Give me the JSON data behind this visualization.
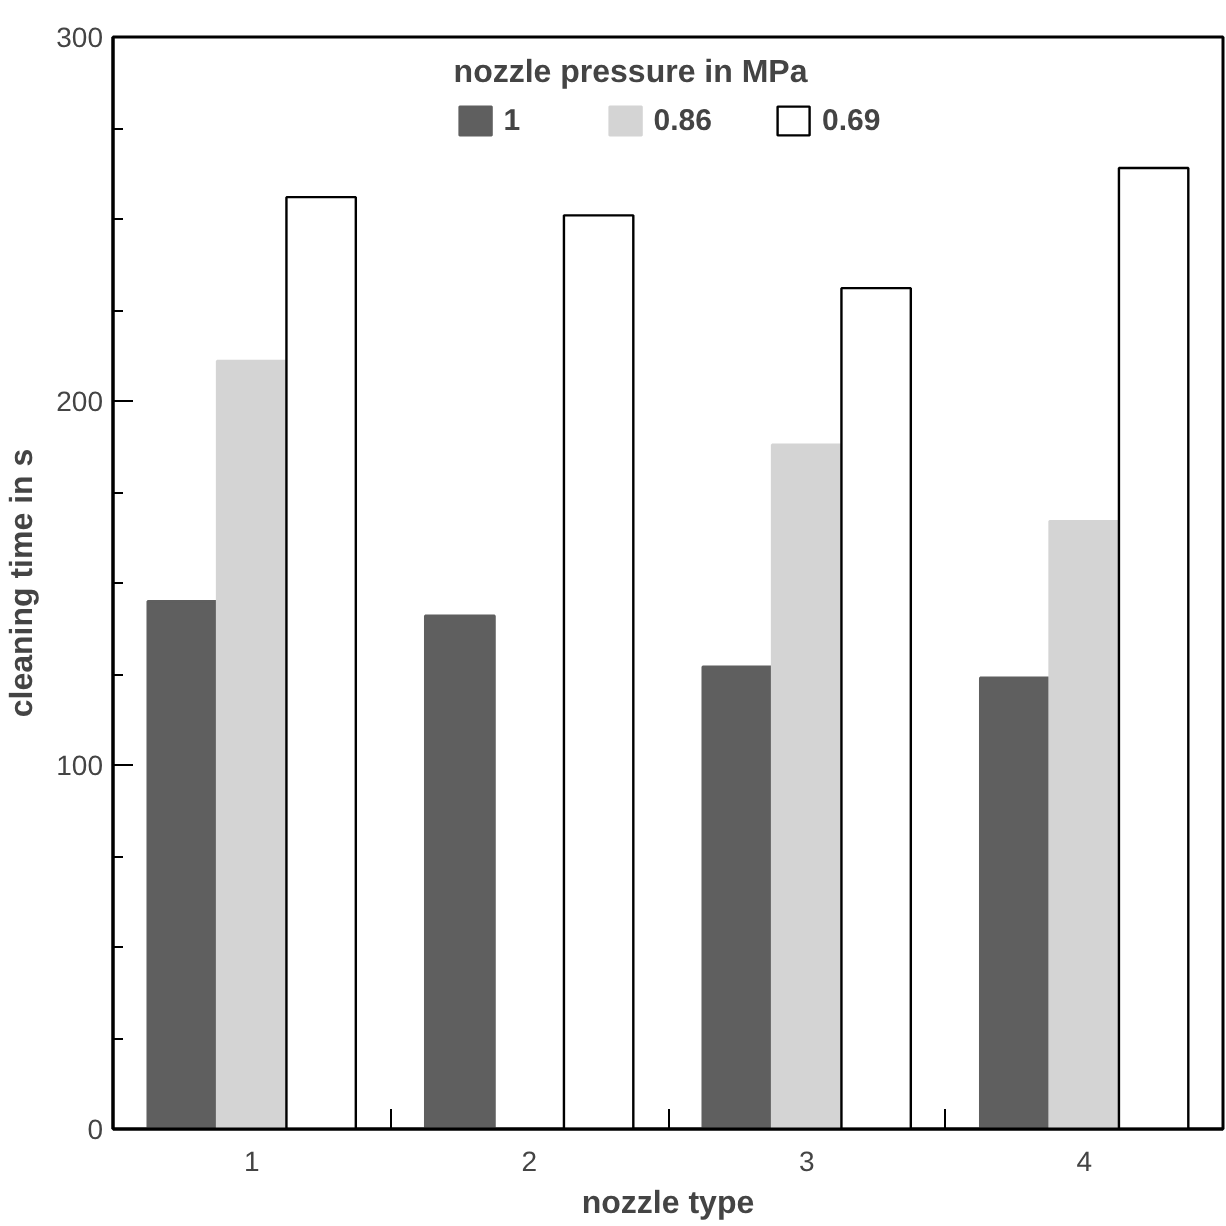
{
  "chart_data": {
    "type": "bar",
    "xlabel": "nozzle type",
    "ylabel": "cleaning time in s",
    "legend_title": "nozzle pressure in MPa",
    "legend": "top",
    "categories": [
      "1",
      "2",
      "3",
      "4"
    ],
    "ylim": [
      0,
      300
    ],
    "yticks": [
      0,
      100,
      200,
      300
    ],
    "grid": false,
    "series": [
      {
        "name": "1",
        "color": "#5f5f5f",
        "values": [
          145,
          141,
          127,
          124
        ]
      },
      {
        "name": "0.86",
        "color": "#d4d4d4",
        "values": [
          211,
          null,
          188,
          167
        ]
      },
      {
        "name": "0.69",
        "color": "#ffffff",
        "values": [
          256,
          251,
          231,
          264
        ]
      }
    ]
  }
}
